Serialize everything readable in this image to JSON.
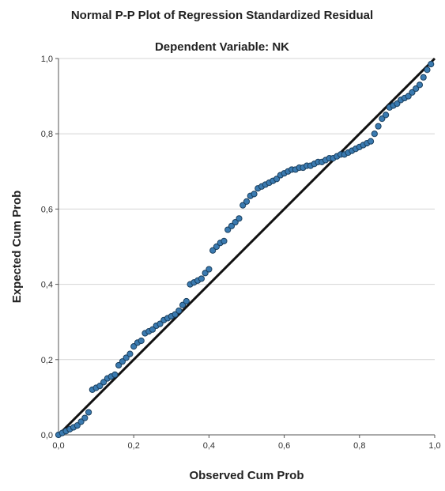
{
  "chart_data": {
    "type": "scatter",
    "title": "Normal P-P Plot of Regression Standardized Residual",
    "subtitle": "Dependent Variable: NK",
    "xlabel": "Observed Cum Prob",
    "ylabel": "Expected Cum Prob",
    "xlim": [
      0.0,
      1.0
    ],
    "ylim": [
      0.0,
      1.0
    ],
    "x_ticks": [
      "0,0",
      "0,2",
      "0,4",
      "0,6",
      "0,8",
      "1,0"
    ],
    "y_ticks": [
      "0,0",
      "0,2",
      "0,4",
      "0,6",
      "0,8",
      "1,0"
    ],
    "grid": "horizontal",
    "reference_line": {
      "from": [
        0.0,
        0.0
      ],
      "to": [
        1.0,
        1.0
      ]
    },
    "point_color": "#3a7ab0",
    "point_edge_color": "#1a3f5e",
    "line_color": "#111111",
    "series": [
      {
        "x": [
          0.0,
          0.01,
          0.02,
          0.03,
          0.04,
          0.05,
          0.06,
          0.07,
          0.08,
          0.09,
          0.1,
          0.11,
          0.12,
          0.13,
          0.14,
          0.15,
          0.16,
          0.17,
          0.18,
          0.19,
          0.2,
          0.21,
          0.22,
          0.23,
          0.24,
          0.25,
          0.26,
          0.27,
          0.28,
          0.29,
          0.3,
          0.31,
          0.32,
          0.33,
          0.34,
          0.35,
          0.36,
          0.37,
          0.38,
          0.39,
          0.4,
          0.41,
          0.42,
          0.43,
          0.44,
          0.45,
          0.46,
          0.47,
          0.48,
          0.49,
          0.5,
          0.51,
          0.52,
          0.53,
          0.54,
          0.55,
          0.56,
          0.57,
          0.58,
          0.59,
          0.6,
          0.61,
          0.62,
          0.63,
          0.64,
          0.65,
          0.66,
          0.67,
          0.68,
          0.69,
          0.7,
          0.71,
          0.72,
          0.73,
          0.74,
          0.75,
          0.76,
          0.77,
          0.78,
          0.79,
          0.8,
          0.81,
          0.82,
          0.83,
          0.84,
          0.85,
          0.86,
          0.87,
          0.88,
          0.89,
          0.9,
          0.91,
          0.92,
          0.93,
          0.94,
          0.95,
          0.96,
          0.97,
          0.98,
          0.99
        ],
        "y": [
          0.0,
          0.005,
          0.01,
          0.015,
          0.02,
          0.025,
          0.035,
          0.045,
          0.06,
          0.12,
          0.125,
          0.13,
          0.14,
          0.15,
          0.155,
          0.16,
          0.185,
          0.195,
          0.205,
          0.215,
          0.235,
          0.245,
          0.25,
          0.27,
          0.275,
          0.28,
          0.29,
          0.295,
          0.305,
          0.31,
          0.315,
          0.32,
          0.33,
          0.345,
          0.355,
          0.4,
          0.405,
          0.41,
          0.415,
          0.43,
          0.44,
          0.49,
          0.5,
          0.51,
          0.515,
          0.545,
          0.555,
          0.565,
          0.575,
          0.61,
          0.62,
          0.635,
          0.64,
          0.655,
          0.66,
          0.665,
          0.67,
          0.675,
          0.68,
          0.69,
          0.695,
          0.7,
          0.705,
          0.705,
          0.71,
          0.71,
          0.715,
          0.715,
          0.72,
          0.725,
          0.725,
          0.73,
          0.735,
          0.735,
          0.74,
          0.745,
          0.745,
          0.75,
          0.755,
          0.76,
          0.765,
          0.77,
          0.775,
          0.78,
          0.8,
          0.82,
          0.84,
          0.85,
          0.87,
          0.875,
          0.88,
          0.89,
          0.895,
          0.9,
          0.91,
          0.92,
          0.93,
          0.95,
          0.97,
          0.985
        ]
      }
    ]
  }
}
